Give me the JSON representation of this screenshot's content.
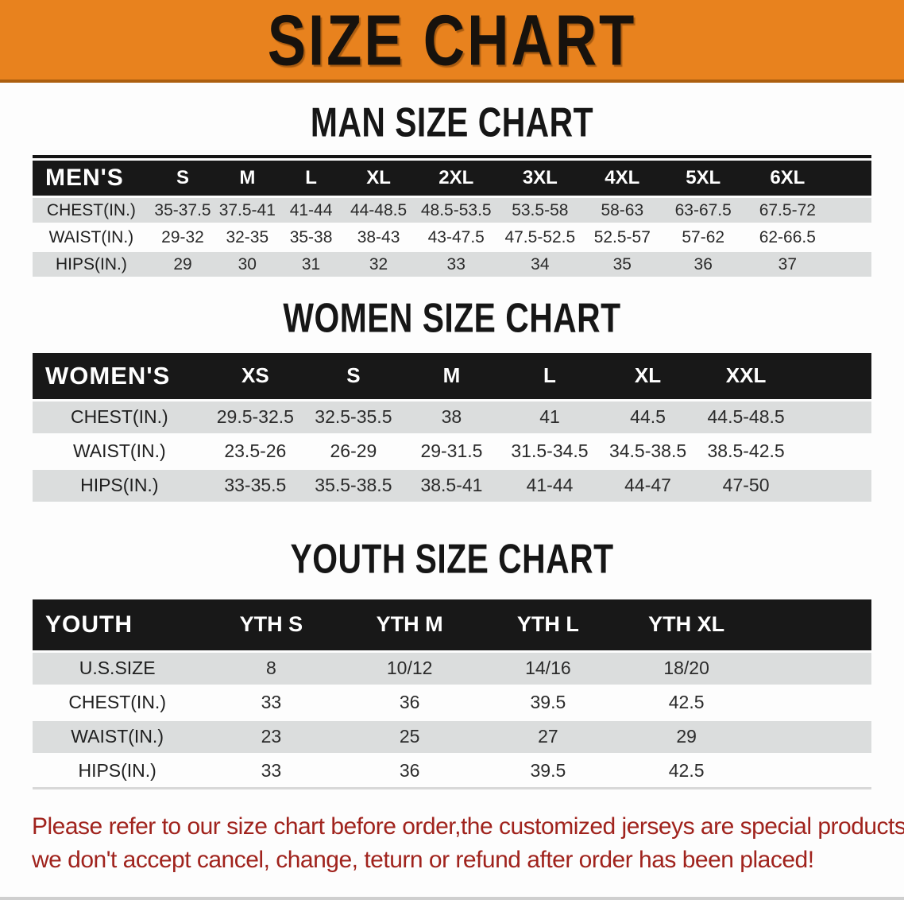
{
  "banner": {
    "title": "SIZE CHART",
    "bg_color": "#E8821E",
    "text_color": "#17120D"
  },
  "colors": {
    "table_header_bg": "#181818",
    "table_header_text": "#FFFFFF",
    "row_stripe": "#DBDDDD",
    "footer_text": "#A0231D"
  },
  "sections": [
    {
      "heading": "MAN SIZE CHART",
      "table": {
        "name": "mens",
        "corner_label": "MEN'S",
        "columns": [
          "S",
          "M",
          "L",
          "XL",
          "2XL",
          "3XL",
          "4XL",
          "5XL",
          "6XL"
        ],
        "rows": [
          {
            "label": "CHEST(IN.)",
            "values": [
              "35-37.5",
              "37.5-41",
              "41-44",
              "44-48.5",
              "48.5-53.5",
              "53.5-58",
              "58-63",
              "63-67.5",
              "67.5-72"
            ]
          },
          {
            "label": "WAIST(IN.)",
            "values": [
              "29-32",
              "32-35",
              "35-38",
              "38-43",
              "43-47.5",
              "47.5-52.5",
              "52.5-57",
              "57-62",
              "62-66.5"
            ]
          },
          {
            "label": "HIPS(IN.)",
            "values": [
              "29",
              "30",
              "31",
              "32",
              "33",
              "34",
              "35",
              "36",
              "37"
            ]
          }
        ]
      }
    },
    {
      "heading": "WOMEN SIZE CHART",
      "table": {
        "name": "womens",
        "corner_label": "WOMEN'S",
        "columns": [
          "XS",
          "S",
          "M",
          "L",
          "XL",
          "XXL"
        ],
        "rows": [
          {
            "label": "CHEST(IN.)",
            "values": [
              "29.5-32.5",
              "32.5-35.5",
              "38",
              "41",
              "44.5",
              "44.5-48.5"
            ]
          },
          {
            "label": "WAIST(IN.)",
            "values": [
              "23.5-26",
              "26-29",
              "29-31.5",
              "31.5-34.5",
              "34.5-38.5",
              "38.5-42.5"
            ]
          },
          {
            "label": "HIPS(IN.)",
            "values": [
              "33-35.5",
              "35.5-38.5",
              "38.5-41",
              "41-44",
              "44-47",
              "47-50"
            ]
          }
        ]
      }
    },
    {
      "heading": "YOUTH SIZE CHART",
      "table": {
        "name": "youth",
        "corner_label": "YOUTH",
        "columns": [
          "YTH S",
          "YTH M",
          "YTH L",
          "YTH XL"
        ],
        "rows": [
          {
            "label": "U.S.SIZE",
            "values": [
              "8",
              "10/12",
              "14/16",
              "18/20"
            ]
          },
          {
            "label": "CHEST(IN.)",
            "values": [
              "33",
              "36",
              "39.5",
              "42.5"
            ]
          },
          {
            "label": "WAIST(IN.)",
            "values": [
              "23",
              "25",
              "27",
              "29"
            ]
          },
          {
            "label": "HIPS(IN.)",
            "values": [
              "33",
              "36",
              "39.5",
              "42.5"
            ]
          }
        ]
      }
    }
  ],
  "footer_note": {
    "lines": [
      "Please refer to our size chart before order,the customized jerseys are special products,",
      "we don't accept cancel, change, teturn or refund after order has been placed!"
    ]
  }
}
